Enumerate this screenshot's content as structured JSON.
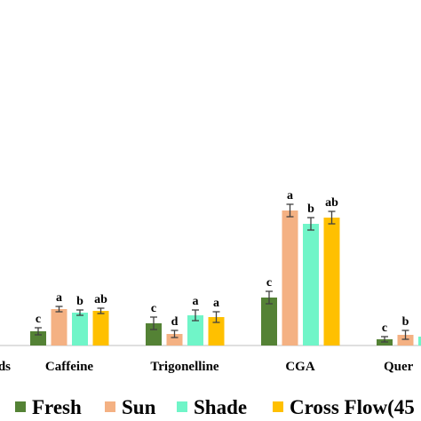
{
  "chart_data": {
    "type": "bar",
    "categories": [
      "ds",
      "Caffeine",
      "Trigonelline",
      "CGA",
      "Quer"
    ],
    "ylim": [
      0,
      200
    ],
    "series": [
      {
        "name": "Fresh",
        "color": "#548235",
        "values": [
          null,
          16,
          25,
          54,
          7
        ],
        "errors": [
          null,
          4,
          7,
          7,
          3
        ],
        "letters": [
          null,
          "c",
          "c",
          "c",
          "c"
        ]
      },
      {
        "name": "Sun",
        "color": "#f4b183",
        "values": [
          null,
          41,
          13,
          152,
          12
        ],
        "errors": [
          null,
          3,
          4,
          7,
          5
        ],
        "letters": [
          null,
          "a",
          "d",
          "a",
          "b"
        ]
      },
      {
        "name": "Shade",
        "color": "#70f5c8",
        "values": [
          null,
          37,
          34,
          137,
          10
        ],
        "errors": [
          null,
          3,
          6,
          7,
          null
        ],
        "letters": [
          null,
          "b",
          "a",
          "b",
          null
        ]
      },
      {
        "name": "Cross Flow(45",
        "color": "#ffc000",
        "values": [
          null,
          39,
          32,
          144,
          null
        ],
        "errors": [
          null,
          3,
          6,
          7,
          null
        ],
        "letters": [
          null,
          "ab",
          "a",
          "ab",
          null
        ]
      }
    ]
  }
}
